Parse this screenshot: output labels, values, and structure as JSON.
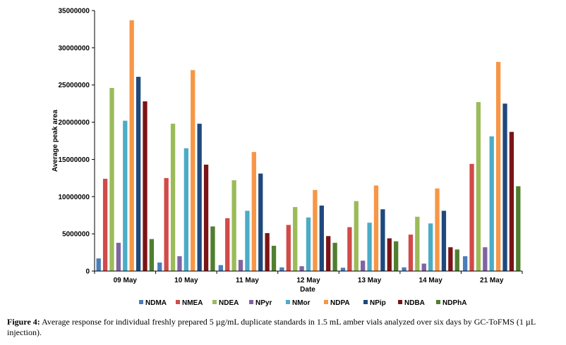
{
  "chart_data": {
    "type": "bar",
    "title": "",
    "xlabel": "Date",
    "ylabel": "Average peak area",
    "ylim": [
      0,
      35000000
    ],
    "yticks": [
      "0",
      "5000000",
      "10000000",
      "15000000",
      "20000000",
      "25000000",
      "30000000",
      "35000000"
    ],
    "grid": false,
    "legend_position": "bottom",
    "categories": [
      "09 May",
      "10 May",
      "11 May",
      "12 May",
      "13 May",
      "14 May",
      "21 May"
    ],
    "series": [
      {
        "name": "NDMA",
        "color": "#4a7ebb",
        "values": [
          1700000,
          1150000,
          800000,
          500000,
          450000,
          500000,
          2000000
        ]
      },
      {
        "name": "NMEA",
        "color": "#d14b48",
        "values": [
          12400000,
          12500000,
          7100000,
          6200000,
          5900000,
          4900000,
          14400000
        ]
      },
      {
        "name": "NDEA",
        "color": "#9bbb59",
        "values": [
          24600000,
          19800000,
          12200000,
          8600000,
          9400000,
          7300000,
          22700000
        ]
      },
      {
        "name": "NPyr",
        "color": "#8064a2",
        "values": [
          3800000,
          2000000,
          1500000,
          650000,
          1400000,
          1000000,
          3200000
        ]
      },
      {
        "name": "NMor",
        "color": "#4bacc6",
        "values": [
          20200000,
          16500000,
          8100000,
          7200000,
          6500000,
          6400000,
          18100000
        ]
      },
      {
        "name": "NDPA",
        "color": "#f79646",
        "values": [
          33700000,
          27000000,
          16000000,
          10900000,
          11500000,
          11100000,
          28100000
        ]
      },
      {
        "name": "NPip",
        "color": "#1f497d",
        "values": [
          26100000,
          19800000,
          13100000,
          8800000,
          8300000,
          8100000,
          22500000
        ]
      },
      {
        "name": "NDBA",
        "color": "#7b1416",
        "values": [
          22800000,
          14300000,
          5100000,
          4700000,
          4400000,
          3200000,
          18700000
        ]
      },
      {
        "name": "NDPhA",
        "color": "#4f7f2f",
        "values": [
          4300000,
          6000000,
          3400000,
          3800000,
          4000000,
          2900000,
          11400000
        ]
      }
    ]
  },
  "caption": {
    "label": "Figure 4:",
    "text": " Average response for individual freshly prepared 5 µg/mL duplicate standards in 1.5 mL amber vials analyzed over six days by GC-ToFMS (1 µL injection)."
  }
}
